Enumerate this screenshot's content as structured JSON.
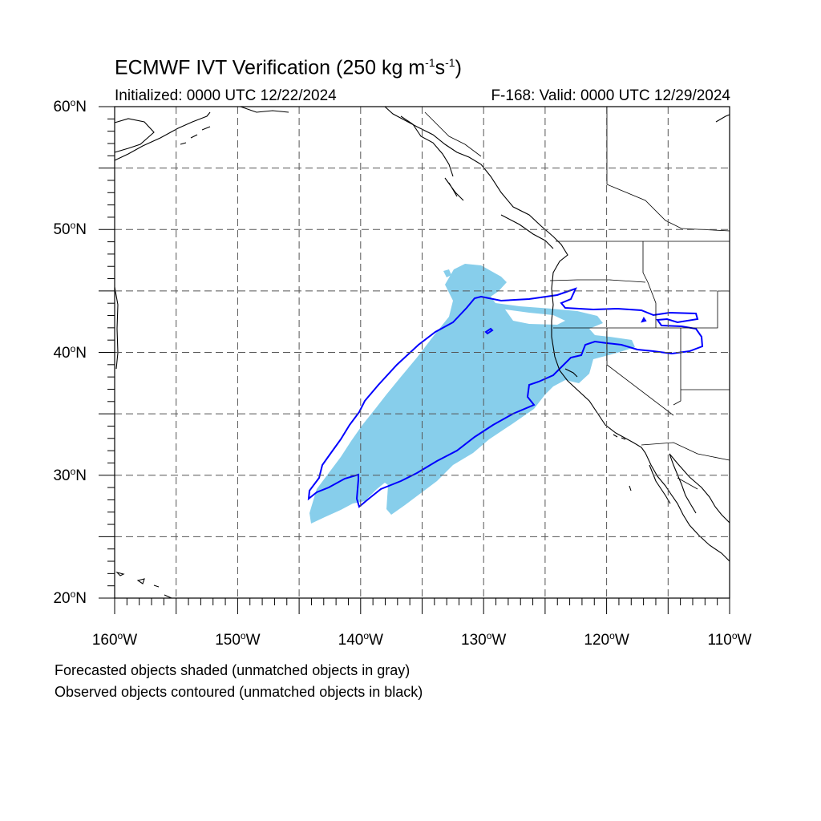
{
  "title": {
    "main": "ECMWF IVT Verification (250 kg m",
    "sup1": "-1",
    "mid": "s",
    "sup2": "-1",
    "end": ")"
  },
  "subtitle": {
    "initialized": "Initialized: 0000 UTC 12/22/2024",
    "valid": "F-168: Valid: 0000 UTC 12/29/2024"
  },
  "axes": {
    "lat_labels": [
      "60",
      "50",
      "40",
      "30",
      "20"
    ],
    "lat_suffix": "N",
    "lon_labels": [
      "160",
      "150",
      "140",
      "130",
      "120",
      "110"
    ],
    "lon_suffix": "W",
    "lat_range": [
      20,
      60
    ],
    "lon_range": [
      -160,
      -110
    ],
    "grid_spacing_deg": 5
  },
  "legend": {
    "line1": "Forecasted objects shaded (unmatched objects in gray)",
    "line2": "Observed objects contoured (unmatched objects in black)"
  },
  "colors": {
    "forecast_fill": "#87ceeb",
    "observed_contour": "#0000ff",
    "coastline": "#000000",
    "grid": "#555555"
  }
}
